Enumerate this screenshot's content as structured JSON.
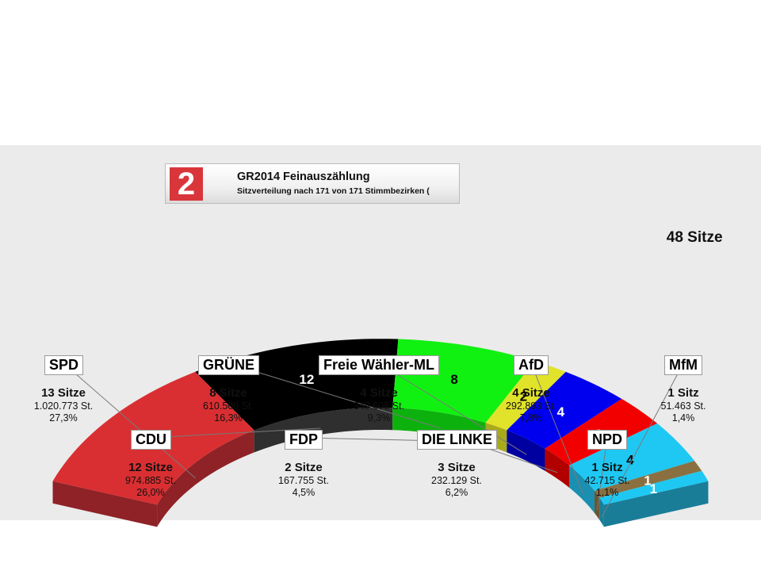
{
  "header": {
    "logo": "2",
    "title": "GR2014 Feinauszählung",
    "subtitle": "Sitzverteilung nach 171 von 171 Stimmbezirken ("
  },
  "chart_data": {
    "type": "pie",
    "total_label": "48 Sitze",
    "total_seats": 48,
    "parties": [
      {
        "name": "SPD",
        "seats": 13,
        "seats_label": "13 Sitze",
        "votes": "1.020.773 St.",
        "percent": "27,3%",
        "color": "#d92f32",
        "side": "#8e2226"
      },
      {
        "name": "CDU",
        "seats": 12,
        "seats_label": "12 Sitze",
        "votes": "974.885 St.",
        "percent": "26,0%",
        "color": "#000000",
        "side": "#2f2f2f"
      },
      {
        "name": "GRÜNE",
        "seats": 8,
        "seats_label": "8 Sitze",
        "votes": "610.500 St.",
        "percent": "16,3%",
        "color": "#11f111",
        "side": "#0db10d"
      },
      {
        "name": "FDP",
        "seats": 2,
        "seats_label": "2 Sitze",
        "votes": "167.755 St.",
        "percent": "4,5%",
        "color": "#e1e22a",
        "side": "#a9aa1b"
      },
      {
        "name": "Freie Wähler-ML",
        "seats": 4,
        "seats_label": "4 Sitze",
        "votes": "349.608 St.",
        "percent": "9,3%",
        "color": "#0000ee",
        "side": "#0000a0"
      },
      {
        "name": "DIE LINKE",
        "seats": 3,
        "seats_label": "3 Sitze",
        "votes": "232.129 St.",
        "percent": "6,2%",
        "color": "#f20000",
        "side": "#b00000"
      },
      {
        "name": "AfD",
        "seats": 4,
        "seats_label": "4 Sitze",
        "votes": "292.893 St.",
        "percent": "7,8%",
        "color": "#1ec8f2",
        "side": "#1a8fb0"
      },
      {
        "name": "NPD",
        "seats": 1,
        "seats_label": "1 Sitz",
        "votes": "42.715 St.",
        "percent": "1,1%",
        "color": "#8a7040",
        "side": "#6a5530"
      },
      {
        "name": "MfM",
        "seats": 1,
        "seats_label": "1 Sitz",
        "votes": "51.463 St.",
        "percent": "1,4%",
        "color": "#1ec8f2",
        "side": "#1a7d98"
      }
    ]
  }
}
